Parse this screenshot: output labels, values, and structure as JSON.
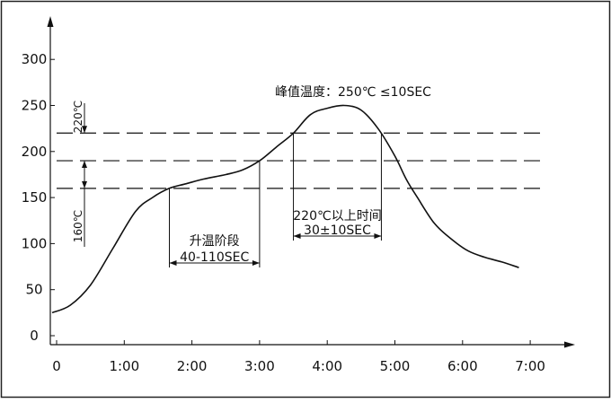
{
  "chart_data": {
    "type": "line",
    "title": "",
    "xlabel": "",
    "ylabel": "",
    "x_ticks": [
      "0",
      "1:00",
      "2:00",
      "3:00",
      "4:00",
      "5:00",
      "6:00",
      "7:00"
    ],
    "y_ticks": [
      "0",
      "50",
      "100",
      "150",
      "200",
      "250",
      "300"
    ],
    "xlim": [
      "0:00",
      "7:30"
    ],
    "ylim": [
      0,
      350
    ],
    "grid": false,
    "series": [
      {
        "name": "",
        "x": [
          "-0:04",
          "0:12",
          "0:30",
          "0:50",
          "1:10",
          "1:25",
          "1:40",
          "1:55",
          "2:10",
          "2:30",
          "2:45",
          "3:00",
          "3:15",
          "3:30",
          "3:45",
          "4:00",
          "4:15",
          "4:30",
          "4:45",
          "5:00",
          "5:10",
          "5:20",
          "5:35",
          "5:50",
          "6:05",
          "6:20",
          "6:35",
          "6:50"
        ],
        "y": [
          25,
          33,
          55,
          95,
          135,
          150,
          160,
          165,
          170,
          175,
          180,
          190,
          205,
          220,
          240,
          247,
          250,
          245,
          225,
          195,
          170,
          150,
          122,
          105,
          92,
          85,
          80,
          74
        ]
      }
    ],
    "reference_lines": [
      {
        "y": 220
      },
      {
        "y": 190
      },
      {
        "y": 160
      }
    ],
    "annotations": {
      "peak": "峰值温度：250℃  ≤10SEC",
      "label_220": "220℃",
      "label_160": "160℃",
      "ramp_text": "升温阶段",
      "ramp_range": "40-110SEC",
      "ramp_x": [
        "1:40",
        "3:00"
      ],
      "above_text": "220℃以上时间",
      "above_range": "30±10SEC",
      "above_x": [
        "3:30",
        "4:48"
      ]
    }
  }
}
